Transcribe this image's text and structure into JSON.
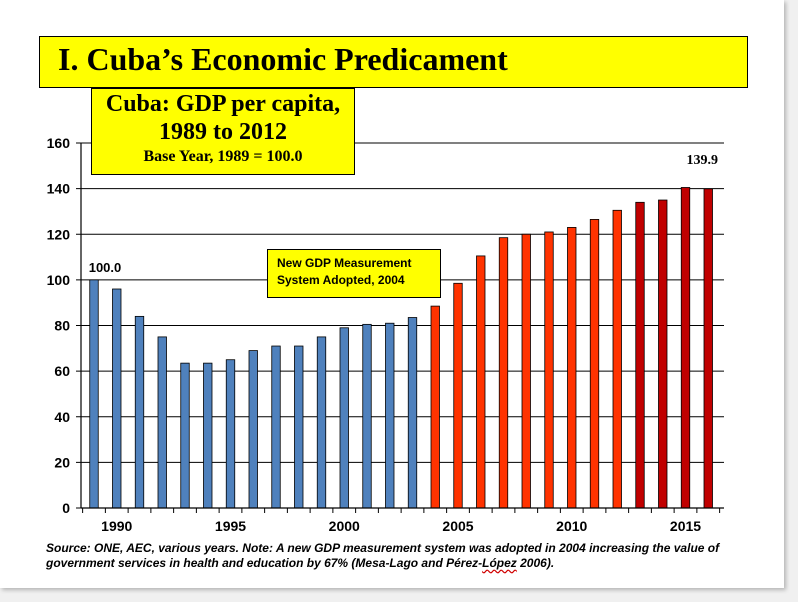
{
  "slide": {
    "title": "I. Cuba’s Economic Predicament",
    "subtitle_line1": "Cuba: GDP per capita,",
    "subtitle_line2": "1989 to 2012",
    "subtitle_line3": "Base Year, 1989 = 100.0",
    "note_line1": "New GDP Measurement",
    "note_line2": "System Adopted, 2004",
    "source_part1": "Source: ONE, AEC, various years. Note: A new GDP measurement system was adopted in 2004 increasing the value of government services in health and education by 67% (Mesa-Lago and Pérez-",
    "source_part2": "López",
    "source_part3": " 2006)."
  },
  "colors": {
    "title_bg": "#ffff00",
    "old_system": "#4f81bd",
    "new_system": "#ff3300",
    "recent": "#c00000"
  },
  "chart_data": {
    "type": "bar",
    "x": [
      1989,
      1990,
      1991,
      1992,
      1993,
      1994,
      1995,
      1996,
      1997,
      1998,
      1999,
      2000,
      2001,
      2002,
      2003,
      2004,
      2005,
      2006,
      2007,
      2008,
      2009,
      2010,
      2011,
      2012,
      2013,
      2014,
      2015,
      2016
    ],
    "values": [
      100.0,
      96,
      84,
      75,
      63.5,
      63.5,
      65,
      69,
      71,
      71,
      75,
      79,
      80.5,
      81,
      83.5,
      88.5,
      98.5,
      110.5,
      118.5,
      120,
      121,
      123,
      126.5,
      130.5,
      134,
      135,
      140.5,
      139.9
    ],
    "bar_colors": [
      "#4f81bd",
      "#4f81bd",
      "#4f81bd",
      "#4f81bd",
      "#4f81bd",
      "#4f81bd",
      "#4f81bd",
      "#4f81bd",
      "#4f81bd",
      "#4f81bd",
      "#4f81bd",
      "#4f81bd",
      "#4f81bd",
      "#4f81bd",
      "#4f81bd",
      "#ff3300",
      "#ff3300",
      "#ff3300",
      "#ff3300",
      "#ff3300",
      "#ff3300",
      "#ff3300",
      "#ff3300",
      "#ff3300",
      "#c00000",
      "#c00000",
      "#c00000",
      "#c00000"
    ],
    "xticks": [
      "1990",
      "1995",
      "2000",
      "2005",
      "2010",
      "2015"
    ],
    "yticks": [
      "0",
      "20",
      "40",
      "60",
      "80",
      "100",
      "120",
      "140",
      "160"
    ],
    "ylim": [
      0,
      160
    ],
    "data_labels": [
      {
        "index": 0,
        "text": "100.0"
      },
      {
        "index": 27,
        "text": "139.9"
      }
    ],
    "grid": "horizontal"
  }
}
